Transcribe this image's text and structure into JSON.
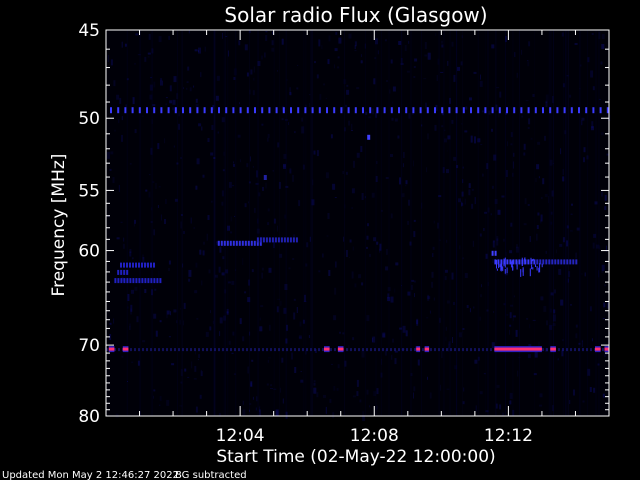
{
  "chart_data": {
    "type": "heatmap",
    "title": "Solar radio Flux (Glasgow)",
    "ylabel": "Frequency [MHz]",
    "xlabel": "Start Time (02-May-22 12:00:00)",
    "y_scale": "reciprocal",
    "y_range_mhz": [
      45,
      80
    ],
    "y_ticks": [
      {
        "value": 45,
        "label": "45"
      },
      {
        "value": 50,
        "label": "50"
      },
      {
        "value": 55,
        "label": "55"
      },
      {
        "value": 60,
        "label": "60"
      },
      {
        "value": 70,
        "label": "70"
      },
      {
        "value": 80,
        "label": "80"
      }
    ],
    "x_range": [
      "12:00:00",
      "12:15:00"
    ],
    "x_ticks": [
      {
        "value": "12:04",
        "label": "12:04"
      },
      {
        "value": "12:08",
        "label": "12:08"
      },
      {
        "value": "12:12",
        "label": "12:12"
      }
    ],
    "colors": {
      "background": "#000000",
      "frame": "#ffffff",
      "low": "#0000ff",
      "high": "#ff3070"
    },
    "emission_features": [
      {
        "kind": "dashed-band",
        "freq_mhz": 49.5,
        "start": "12:00:00",
        "end": "12:15:00",
        "color": "#3a3aff"
      },
      {
        "kind": "segment",
        "freq_mhz": 62,
        "start": "12:00:20",
        "end": "12:00:40",
        "color": "#2020c0"
      },
      {
        "kind": "segment",
        "freq_mhz": 61.3,
        "start": "12:00:25",
        "end": "12:01:25",
        "color": "#2020c0"
      },
      {
        "kind": "segment",
        "freq_mhz": 62.8,
        "start": "12:00:15",
        "end": "12:01:40",
        "color": "#2020c0"
      },
      {
        "kind": "segment",
        "freq_mhz": 59.3,
        "start": "12:03:20",
        "end": "12:04:40",
        "color": "#3030e0"
      },
      {
        "kind": "segment",
        "freq_mhz": 59.0,
        "start": "12:04:30",
        "end": "12:05:40",
        "color": "#2020b0"
      },
      {
        "kind": "point",
        "freq_mhz": 51.2,
        "time": "12:07:50",
        "color": "#4040ff"
      },
      {
        "kind": "point",
        "freq_mhz": 54.0,
        "time": "12:04:45",
        "color": "#2020a0"
      },
      {
        "kind": "segment",
        "freq_mhz": 61.0,
        "start": "12:11:35",
        "end": "12:12:50",
        "color": "#3a3aff"
      },
      {
        "kind": "segment",
        "freq_mhz": 61.0,
        "start": "12:12:50",
        "end": "12:14:00",
        "color": "#2525c0"
      },
      {
        "kind": "segment",
        "freq_mhz": 60.2,
        "start": "12:11:30",
        "end": "12:11:40",
        "color": "#4040ff"
      },
      {
        "kind": "dashed-band",
        "freq_mhz": 70.5,
        "start": "12:00:00",
        "end": "12:15:00",
        "color": "#ff3070"
      }
    ],
    "hot_bursts_70mhz": [
      {
        "start": "12:00:05",
        "end": "12:00:15"
      },
      {
        "start": "12:00:30",
        "end": "12:00:40"
      },
      {
        "start": "12:06:30",
        "end": "12:06:40"
      },
      {
        "start": "12:06:55",
        "end": "12:07:05"
      },
      {
        "start": "12:09:15",
        "end": "12:09:22"
      },
      {
        "start": "12:09:30",
        "end": "12:09:38"
      },
      {
        "start": "12:11:35",
        "end": "12:13:00"
      },
      {
        "start": "12:13:15",
        "end": "12:13:25"
      },
      {
        "start": "12:14:35",
        "end": "12:14:45"
      },
      {
        "start": "12:14:52",
        "end": "12:15:00"
      }
    ]
  },
  "footer": {
    "updated": "Updated Mon May  2 12:46:27 2022",
    "bg_note": "BG subtracted"
  }
}
